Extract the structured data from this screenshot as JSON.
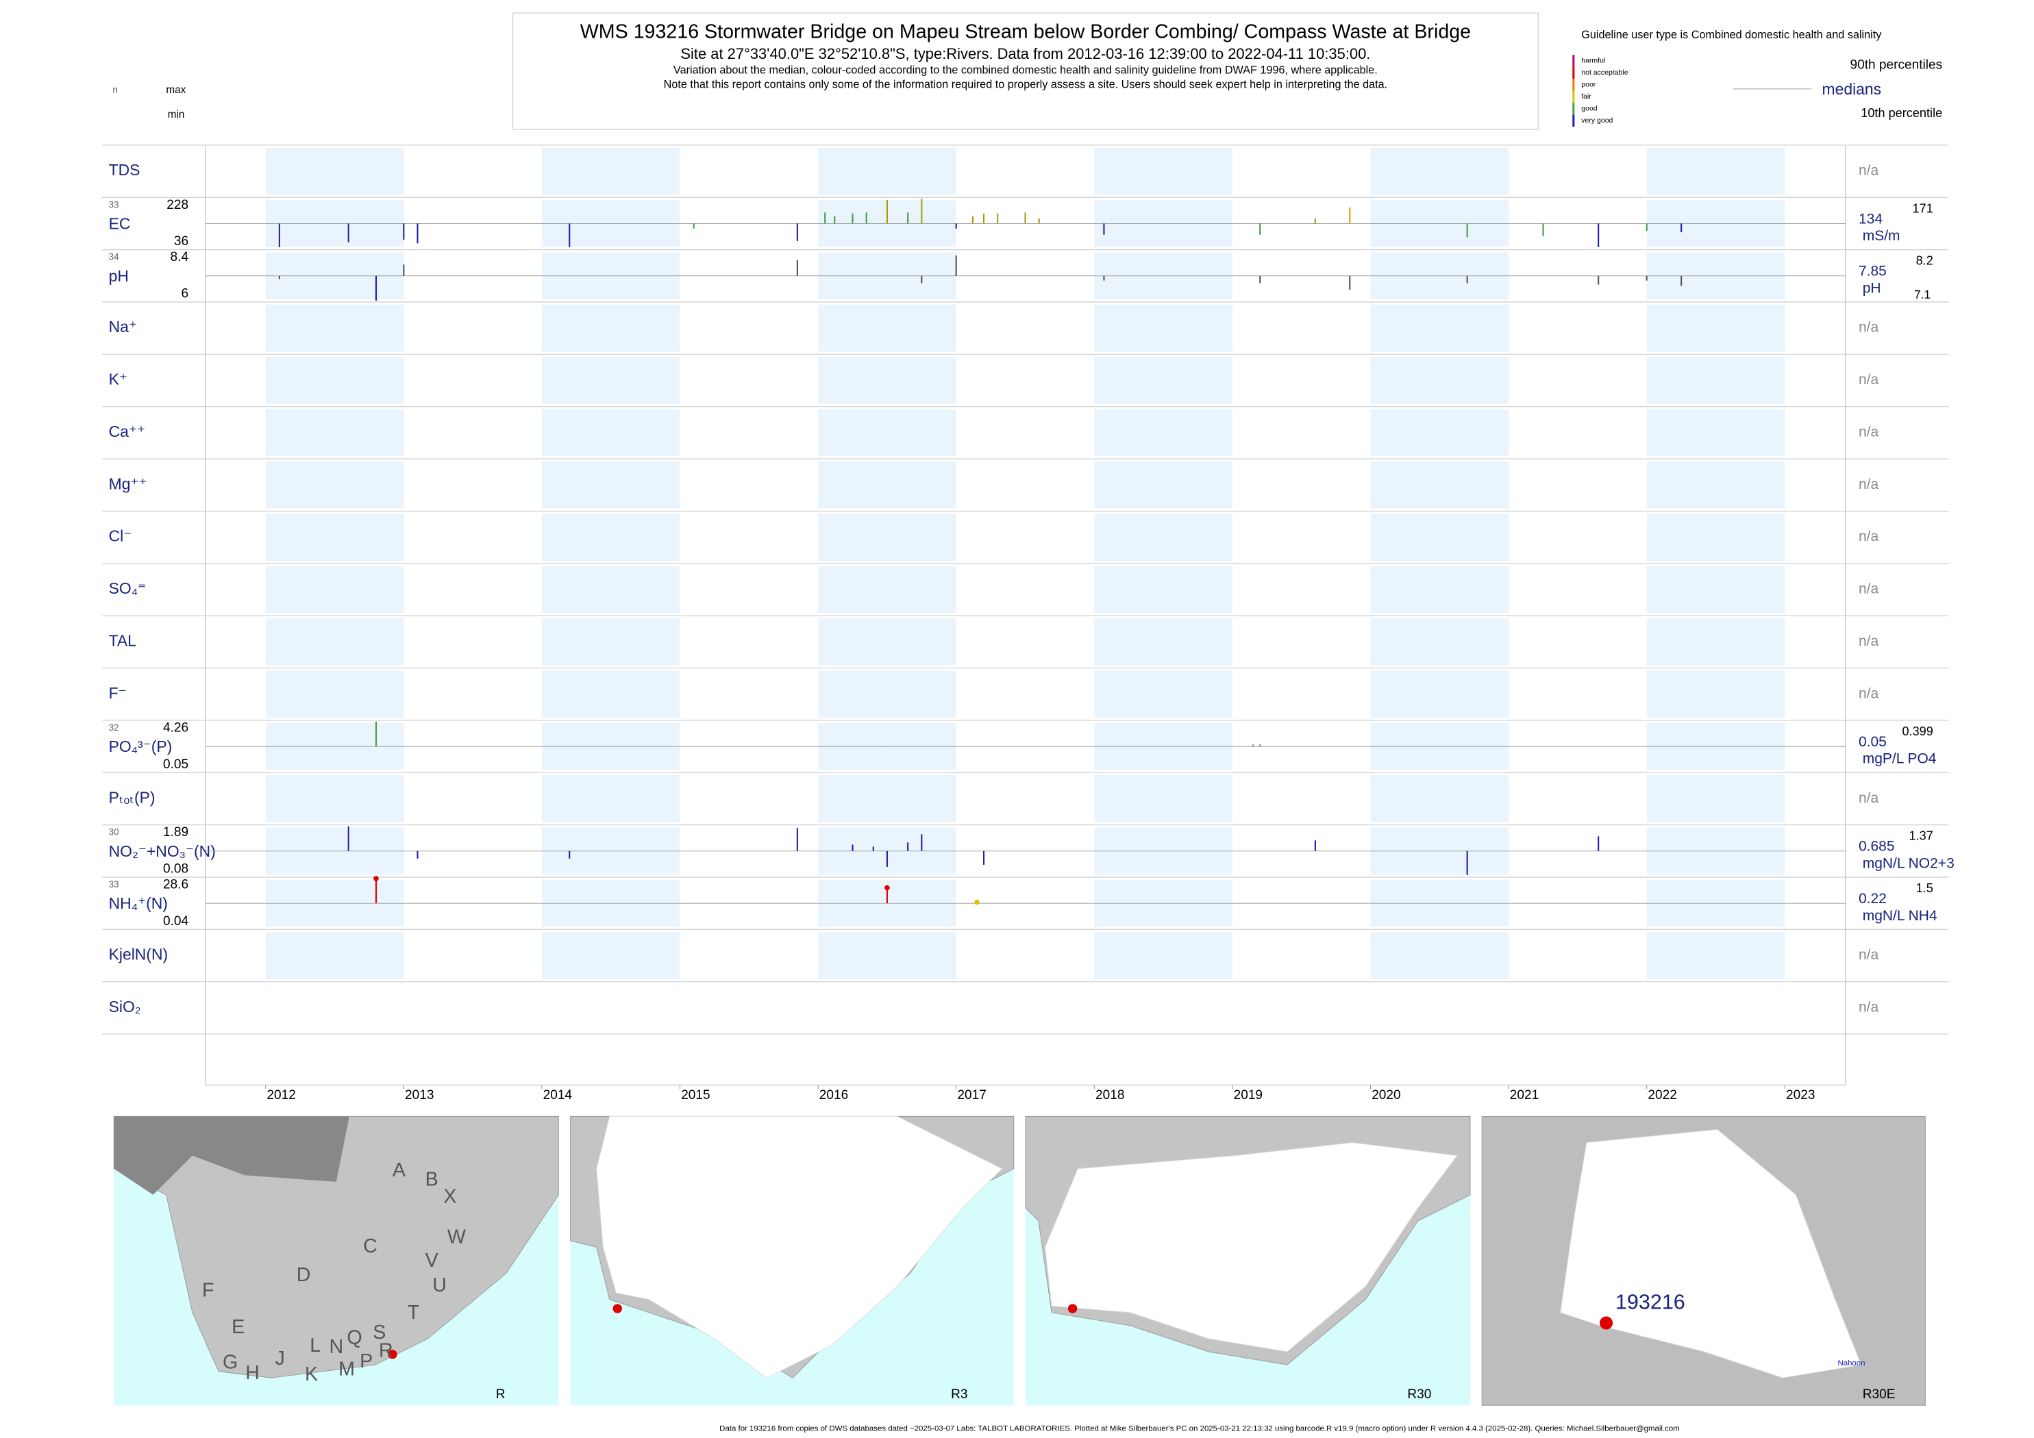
{
  "header": {
    "title": "WMS 193216  Stormwater Bridge on Mapeu Stream below Border Combing/ Compass Waste at Bridge",
    "subtitle": "Site at 27°33'40.0\"E 32°52'10.8\"S, type:Rivers.  Data from 2012-03-16 12:39:00 to 2022-04-11 10:35:00.",
    "note1": "Variation about the median,  colour-coded according to the combined domestic health and salinity guideline from DWAF 1996, where applicable.",
    "note2": "Note that this report contains only some of the information required to properly assess a site. Users should seek expert help in interpreting the data."
  },
  "col_labels": {
    "n": "n",
    "max": "max",
    "min": "min"
  },
  "legend": {
    "title": "Guideline user type is Combined domestic health and salinity",
    "classes": [
      {
        "name": "harmful",
        "color": "#c0007a"
      },
      {
        "name": "not acceptable",
        "color": "#e00000"
      },
      {
        "name": "poor",
        "color": "#f07800"
      },
      {
        "name": "fair",
        "color": "#e0c000"
      },
      {
        "name": "good",
        "color": "#40a040"
      },
      {
        "name": "very good",
        "color": "#2020b0"
      }
    ],
    "p90": "90th percentiles",
    "medians": "medians",
    "p10": "10th percentile"
  },
  "years": [
    2012,
    2013,
    2014,
    2015,
    2016,
    2017,
    2018,
    2019,
    2020,
    2021,
    2022,
    2023
  ],
  "rows": [
    {
      "label": "TDS",
      "status": "n/a"
    },
    {
      "label": "EC",
      "n": 33,
      "max": 228,
      "min": 36,
      "median": 134,
      "unit": "mS/m",
      "p90": 171,
      "samples": [
        {
          "x": 2012.1,
          "value": 41,
          "color": "#2020b0"
        },
        {
          "x": 2012.6,
          "value": 60,
          "color": "#2020b0"
        },
        {
          "x": 2013.0,
          "value": 70,
          "color": "#2020b0"
        },
        {
          "x": 2013.1,
          "value": 56,
          "color": "#2020b0"
        },
        {
          "x": 2014.2,
          "value": 41,
          "color": "#2020b0"
        },
        {
          "x": 2015.1,
          "value": 114,
          "color": "#40a040"
        },
        {
          "x": 2015.85,
          "value": 65,
          "color": "#2020b0"
        },
        {
          "x": 2016.05,
          "value": 176,
          "color": "#40a040"
        },
        {
          "x": 2016.12,
          "value": 162,
          "color": "#40a040"
        },
        {
          "x": 2016.25,
          "value": 172,
          "color": "#40a040"
        },
        {
          "x": 2016.35,
          "value": 176,
          "color": "#40a040"
        },
        {
          "x": 2016.5,
          "value": 223,
          "color": "#a0a000"
        },
        {
          "x": 2016.65,
          "value": 176,
          "color": "#40a040"
        },
        {
          "x": 2016.75,
          "value": 228,
          "color": "#a0a000"
        },
        {
          "x": 2017.0,
          "value": 114,
          "color": "#2020b0"
        },
        {
          "x": 2017.12,
          "value": 162,
          "color": "#a0a000"
        },
        {
          "x": 2017.2,
          "value": 172,
          "color": "#a0a000"
        },
        {
          "x": 2017.3,
          "value": 172,
          "color": "#a0a000"
        },
        {
          "x": 2017.5,
          "value": 176,
          "color": "#a0a000"
        },
        {
          "x": 2017.6,
          "value": 153,
          "color": "#a0a000"
        },
        {
          "x": 2018.07,
          "value": 90,
          "color": "#2020b0"
        },
        {
          "x": 2019.2,
          "value": 90,
          "color": "#40a040"
        },
        {
          "x": 2019.6,
          "value": 153,
          "color": "#a0a000"
        },
        {
          "x": 2019.85,
          "value": 195,
          "color": "#e0a000"
        },
        {
          "x": 2020.7,
          "value": 80,
          "color": "#40a040"
        },
        {
          "x": 2021.25,
          "value": 85,
          "color": "#40a040"
        },
        {
          "x": 2021.65,
          "value": 41,
          "color": "#2020b0"
        },
        {
          "x": 2022.0,
          "value": 105,
          "color": "#40a040"
        },
        {
          "x": 2022.25,
          "value": 100,
          "color": "#2020b0"
        }
      ]
    },
    {
      "label": "pH",
      "n": 34,
      "max": 8.4,
      "min": 6,
      "median": 7.85,
      "unit": "pH",
      "p90": 8.2,
      "p10": 7.1,
      "samples": [
        {
          "x": 2012.1,
          "value": 7.6,
          "color": "#555555"
        },
        {
          "x": 2012.8,
          "value": 6,
          "color": "#2020b0"
        },
        {
          "x": 2013.0,
          "value": 8.1,
          "color": "#555555"
        },
        {
          "x": 2015.85,
          "value": 8.2,
          "color": "#555555"
        },
        {
          "x": 2016.75,
          "value": 7.3,
          "color": "#555555"
        },
        {
          "x": 2017.0,
          "value": 8.3,
          "color": "#555555"
        },
        {
          "x": 2018.07,
          "value": 7.5,
          "color": "#555555"
        },
        {
          "x": 2019.2,
          "value": 7.3,
          "color": "#555555"
        },
        {
          "x": 2019.85,
          "value": 6.8,
          "color": "#555555"
        },
        {
          "x": 2020.7,
          "value": 7.3,
          "color": "#555555"
        },
        {
          "x": 2021.65,
          "value": 7.2,
          "color": "#555555"
        },
        {
          "x": 2022.0,
          "value": 7.5,
          "color": "#555555"
        },
        {
          "x": 2022.25,
          "value": 7.1,
          "color": "#555555"
        }
      ]
    },
    {
      "label": "Na⁺",
      "status": "n/a"
    },
    {
      "label": "K⁺",
      "status": "n/a"
    },
    {
      "label": "Ca⁺⁺",
      "status": "n/a"
    },
    {
      "label": "Mg⁺⁺",
      "status": "n/a"
    },
    {
      "label": "Cl⁻",
      "status": "n/a"
    },
    {
      "label": "SO₄⁼",
      "status": "n/a"
    },
    {
      "label": "TAL",
      "status": "n/a"
    },
    {
      "label": "F⁻",
      "status": "n/a"
    },
    {
      "label": "PO₄³⁻(P)",
      "n": 32,
      "max": 4.26,
      "min": 0.05,
      "median": 0.05,
      "unit": "mgP/L PO4",
      "p90": 0.399,
      "samples": [
        {
          "x": 2012.8,
          "value": 4.26,
          "color": "#40a040"
        },
        {
          "x": 2016.5,
          "value": 0.1,
          "color": "#888888"
        },
        {
          "x": 2019.15,
          "value": 0.399,
          "color": "#888888"
        },
        {
          "x": 2019.2,
          "value": 0.399,
          "color": "#888888"
        }
      ]
    },
    {
      "label": "Pₜₒₜ(P)",
      "status": "n/a"
    },
    {
      "label": "NO₂⁻+NO₃⁻(N)",
      "n": 30,
      "max": 1.89,
      "min": 0.08,
      "median": 0.685,
      "unit": "mgN/L NO2+3",
      "p90": 1.37,
      "samples": [
        {
          "x": 2012.6,
          "value": 1.89,
          "color": "#2020b0"
        },
        {
          "x": 2013.1,
          "value": 0.5,
          "color": "#2020b0"
        },
        {
          "x": 2014.2,
          "value": 0.5,
          "color": "#2020b0"
        },
        {
          "x": 2015.85,
          "value": 1.8,
          "color": "#2020b0"
        },
        {
          "x": 2016.25,
          "value": 1.0,
          "color": "#2020b0"
        },
        {
          "x": 2016.4,
          "value": 0.9,
          "color": "#2020b0"
        },
        {
          "x": 2016.5,
          "value": 0.3,
          "color": "#2020b0"
        },
        {
          "x": 2016.65,
          "value": 1.1,
          "color": "#2020b0"
        },
        {
          "x": 2016.75,
          "value": 1.5,
          "color": "#2020b0"
        },
        {
          "x": 2017.2,
          "value": 0.35,
          "color": "#2020b0"
        },
        {
          "x": 2019.6,
          "value": 1.2,
          "color": "#2020b0"
        },
        {
          "x": 2020.7,
          "value": 0.1,
          "color": "#2020b0"
        },
        {
          "x": 2021.65,
          "value": 1.4,
          "color": "#2020b0"
        }
      ]
    },
    {
      "label": "NH₄⁺(N)",
      "n": 33,
      "max": 28.6,
      "min": 0.04,
      "median": 0.22,
      "unit": "mgN/L NH4",
      "p90": 1.5,
      "samples": [
        {
          "x": 2012.8,
          "value": 28.6,
          "color": "#e00000"
        },
        {
          "x": 2016.5,
          "value": 18,
          "color": "#e00000"
        },
        {
          "x": 2017.15,
          "value": 1.5,
          "color": "#e0c000"
        }
      ]
    },
    {
      "label": "KjelN(N)",
      "status": "n/a"
    },
    {
      "label": "SiO₂",
      "status": "n/a"
    }
  ],
  "maps": [
    {
      "label": "R",
      "regions": [
        "A",
        "B",
        "X",
        "C",
        "W",
        "V",
        "D",
        "U",
        "F",
        "T",
        "E",
        "S",
        "L",
        "N",
        "Q",
        "R",
        "G",
        "H",
        "J",
        "K",
        "M",
        "P"
      ]
    },
    {
      "label": "R3"
    },
    {
      "label": "R30"
    },
    {
      "label": "R30E",
      "site": "193216",
      "place": "Nahoon"
    }
  ],
  "footer": "Data for 193216 from copies of DWS databases dated ~2025-03-07 Labs: TALBOT LABORATORIES. Plotted at Mike Silberbauer's PC on 2025-03-21 22:13:32 using barcode.R v19.9 (macro option) under R version 4.4.3 (2025-02-28). Queries: Michael.Silberbauer@gmail.com"
}
